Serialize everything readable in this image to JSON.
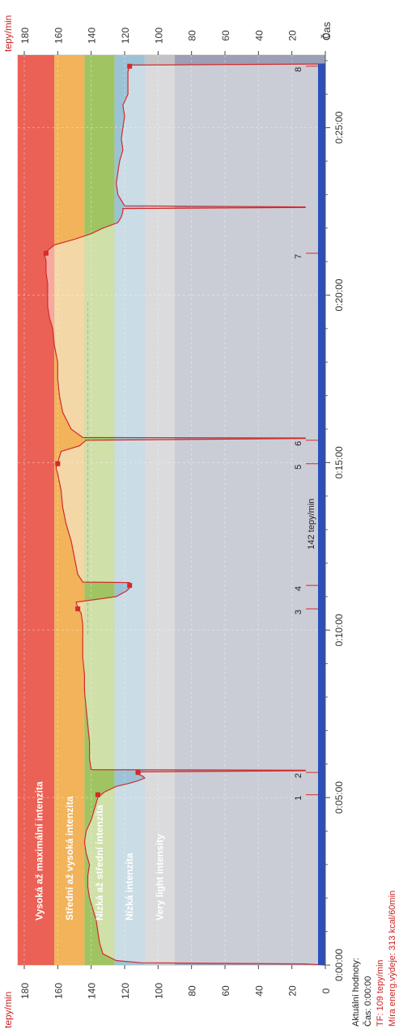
{
  "chart_data": {
    "type": "area",
    "orientation": "rotated-90-cw",
    "ylabel": "tepy/min",
    "xlabel": "Čas",
    "ylim": [
      0,
      185
    ],
    "xlim": [
      0,
      1630
    ],
    "y_ticks": [
      0,
      20,
      40,
      60,
      80,
      100,
      120,
      140,
      160,
      180
    ],
    "x_ticks": [
      {
        "t": 0,
        "label": "0:00:00"
      },
      {
        "t": 300,
        "label": "0:05:00"
      },
      {
        "t": 600,
        "label": "0:10:00"
      },
      {
        "t": 900,
        "label": "0:15:00"
      },
      {
        "t": 1200,
        "label": "0:20:00"
      },
      {
        "t": 1500,
        "label": "0:25:00"
      }
    ],
    "zones": [
      {
        "label": "Vysoká až maximální intenzita",
        "from": 162,
        "to": 180,
        "color": "#ec6155",
        "light": "#f6a9a1"
      },
      {
        "label": "Střední až vysoká intenzita",
        "from": 144,
        "to": 162,
        "color": "#f2b35a",
        "light": "#f4d7a7"
      },
      {
        "label": "Nízká až střední intenzita",
        "from": 126,
        "to": 144,
        "color": "#a1c463",
        "light": "#cfe0a8"
      },
      {
        "label": "Nízká intenzita",
        "from": 108,
        "to": 126,
        "color": "#9cc2d6",
        "light": "#cadce6"
      },
      {
        "label": "Very light intensity",
        "from": 90,
        "to": 108,
        "color": "#c3c3c6",
        "light": "#dbdbdd"
      },
      {
        "label": "",
        "from": 0,
        "to": 90,
        "color": "#9c9fb5",
        "light": "#cbcdd6"
      }
    ],
    "series": [
      {
        "points": [
          [
            0,
            0
          ],
          [
            2,
            12
          ],
          [
            4,
            110
          ],
          [
            8,
            125
          ],
          [
            20,
            133
          ],
          [
            40,
            135
          ],
          [
            60,
            136
          ],
          [
            80,
            137
          ],
          [
            100,
            139
          ],
          [
            120,
            141
          ],
          [
            140,
            142
          ],
          [
            160,
            142
          ],
          [
            180,
            141
          ],
          [
            200,
            143
          ],
          [
            220,
            144
          ],
          [
            240,
            143
          ],
          [
            260,
            140
          ],
          [
            280,
            138
          ],
          [
            300,
            136
          ],
          [
            310,
            132
          ],
          [
            320,
            125
          ],
          [
            325,
            118
          ],
          [
            330,
            112
          ],
          [
            335,
            108
          ],
          [
            338,
            109
          ],
          [
            342,
            112
          ],
          [
            346,
            110
          ],
          [
            348,
            12
          ],
          [
            349,
            12
          ],
          [
            350,
            140
          ],
          [
            370,
            141
          ],
          [
            400,
            141
          ],
          [
            430,
            142
          ],
          [
            460,
            143
          ],
          [
            490,
            144
          ],
          [
            520,
            144
          ],
          [
            550,
            145
          ],
          [
            580,
            145
          ],
          [
            610,
            145
          ],
          [
            630,
            146
          ],
          [
            640,
            148
          ],
          [
            650,
            149
          ],
          [
            660,
            125
          ],
          [
            670,
            119
          ],
          [
            675,
            117
          ],
          [
            685,
            117
          ],
          [
            686,
            145
          ],
          [
            700,
            148
          ],
          [
            730,
            150
          ],
          [
            760,
            152
          ],
          [
            790,
            155
          ],
          [
            820,
            157
          ],
          [
            850,
            158
          ],
          [
            880,
            160
          ],
          [
            890,
            161
          ],
          [
            900,
            160
          ],
          [
            920,
            158
          ],
          [
            930,
            147
          ],
          [
            940,
            143
          ],
          [
            943,
            12
          ],
          [
            944,
            12
          ],
          [
            945,
            145
          ],
          [
            960,
            152
          ],
          [
            990,
            157
          ],
          [
            1020,
            159
          ],
          [
            1050,
            160
          ],
          [
            1080,
            160
          ],
          [
            1110,
            162
          ],
          [
            1140,
            163
          ],
          [
            1160,
            165
          ],
          [
            1180,
            166
          ],
          [
            1200,
            166
          ],
          [
            1220,
            166
          ],
          [
            1240,
            167
          ],
          [
            1260,
            167
          ],
          [
            1275,
            168
          ],
          [
            1290,
            162
          ],
          [
            1300,
            150
          ],
          [
            1310,
            140
          ],
          [
            1320,
            133
          ],
          [
            1330,
            124
          ],
          [
            1340,
            122
          ],
          [
            1350,
            121
          ],
          [
            1355,
            121
          ],
          [
            1357,
            12
          ],
          [
            1358,
            12
          ],
          [
            1360,
            120
          ],
          [
            1380,
            124
          ],
          [
            1400,
            125
          ],
          [
            1420,
            124
          ],
          [
            1440,
            123
          ],
          [
            1460,
            121
          ],
          [
            1480,
            122
          ],
          [
            1500,
            121
          ],
          [
            1520,
            120
          ],
          [
            1540,
            121
          ],
          [
            1560,
            118
          ],
          [
            1580,
            118
          ],
          [
            1600,
            118
          ],
          [
            1612,
            117
          ],
          [
            1614,
            0
          ]
        ]
      }
    ],
    "markers": [
      {
        "label": "1",
        "t": 305,
        "hr": 136
      },
      {
        "label": "2",
        "t": 345,
        "hr": 112
      },
      {
        "label": "3",
        "t": 638,
        "hr": 148
      },
      {
        "label": "4",
        "t": 680,
        "hr": 117
      },
      {
        "label": "5",
        "t": 898,
        "hr": 160
      },
      {
        "label": "6",
        "t": 940,
        "hr": null
      },
      {
        "label": "7",
        "t": 1275,
        "hr": 167
      },
      {
        "label": "8",
        "t": 1610,
        "hr": 117
      }
    ],
    "annotation": "142 tepy/min",
    "annotation_t": 790,
    "reference_hr": 142,
    "reference_t": [
      593,
      1190
    ]
  },
  "info": {
    "title": "Aktuální hodnoty:",
    "time": "Čas: 0:00:00",
    "hr": "TF: 109 tepy/min",
    "energy": "Míra energ.výdeje: 313 kcal/60min"
  },
  "colors": {
    "line": "#d42a2a",
    "axis_red": "#cc2222",
    "time_bar": "#2d4fb8",
    "frame": "#c8c8c8"
  }
}
